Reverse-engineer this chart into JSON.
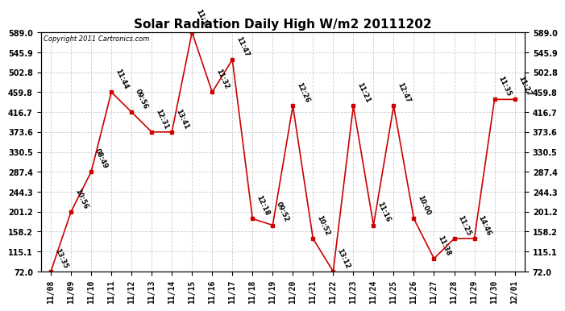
{
  "title": "Solar Radiation Daily High W/m2 20111202",
  "copyright": "Copyright 2011 Cartronics.com",
  "dates": [
    "11/08",
    "11/09",
    "11/10",
    "11/11",
    "11/12",
    "11/13",
    "11/14",
    "11/15",
    "11/16",
    "11/17",
    "11/18",
    "11/19",
    "11/20",
    "11/21",
    "11/22",
    "11/23",
    "11/24",
    "11/25",
    "11/26",
    "11/27",
    "11/28",
    "11/29",
    "11/30",
    "12/01"
  ],
  "values": [
    72.0,
    201.2,
    287.4,
    459.8,
    416.7,
    373.6,
    373.6,
    589.0,
    459.8,
    530.0,
    186.0,
    172.0,
    430.0,
    143.0,
    72.0,
    430.0,
    172.0,
    430.0,
    186.0,
    100.0,
    143.0,
    143.0,
    444.0,
    444.0
  ],
  "labels": [
    "13:35",
    "10:56",
    "08:49",
    "11:44",
    "09:56",
    "12:31",
    "13:41",
    "11:17",
    "11:32",
    "11:47",
    "12:18",
    "09:52",
    "12:26",
    "10:52",
    "13:12",
    "11:21",
    "11:16",
    "12:47",
    "10:00",
    "11:38",
    "11:25",
    "14:46",
    "11:35",
    "11:27"
  ],
  "yticks": [
    72.0,
    115.1,
    158.2,
    201.2,
    244.3,
    287.4,
    330.5,
    373.6,
    416.7,
    459.8,
    502.8,
    545.9,
    589.0
  ],
  "ytick_labels": [
    "72.0",
    "115.1",
    "158.2",
    "201.2",
    "244.3",
    "287.4",
    "330.5",
    "373.6",
    "416.7",
    "459.8",
    "502.8",
    "545.9",
    "589.0"
  ],
  "ylim_min": 72.0,
  "ylim_max": 589.0,
  "line_color": "#cc0000",
  "marker_color": "#cc0000",
  "bg_color": "#ffffff",
  "grid_color": "#cccccc",
  "title_fontsize": 11,
  "label_fontsize": 6,
  "tick_fontsize": 7,
  "copyright_fontsize": 6
}
